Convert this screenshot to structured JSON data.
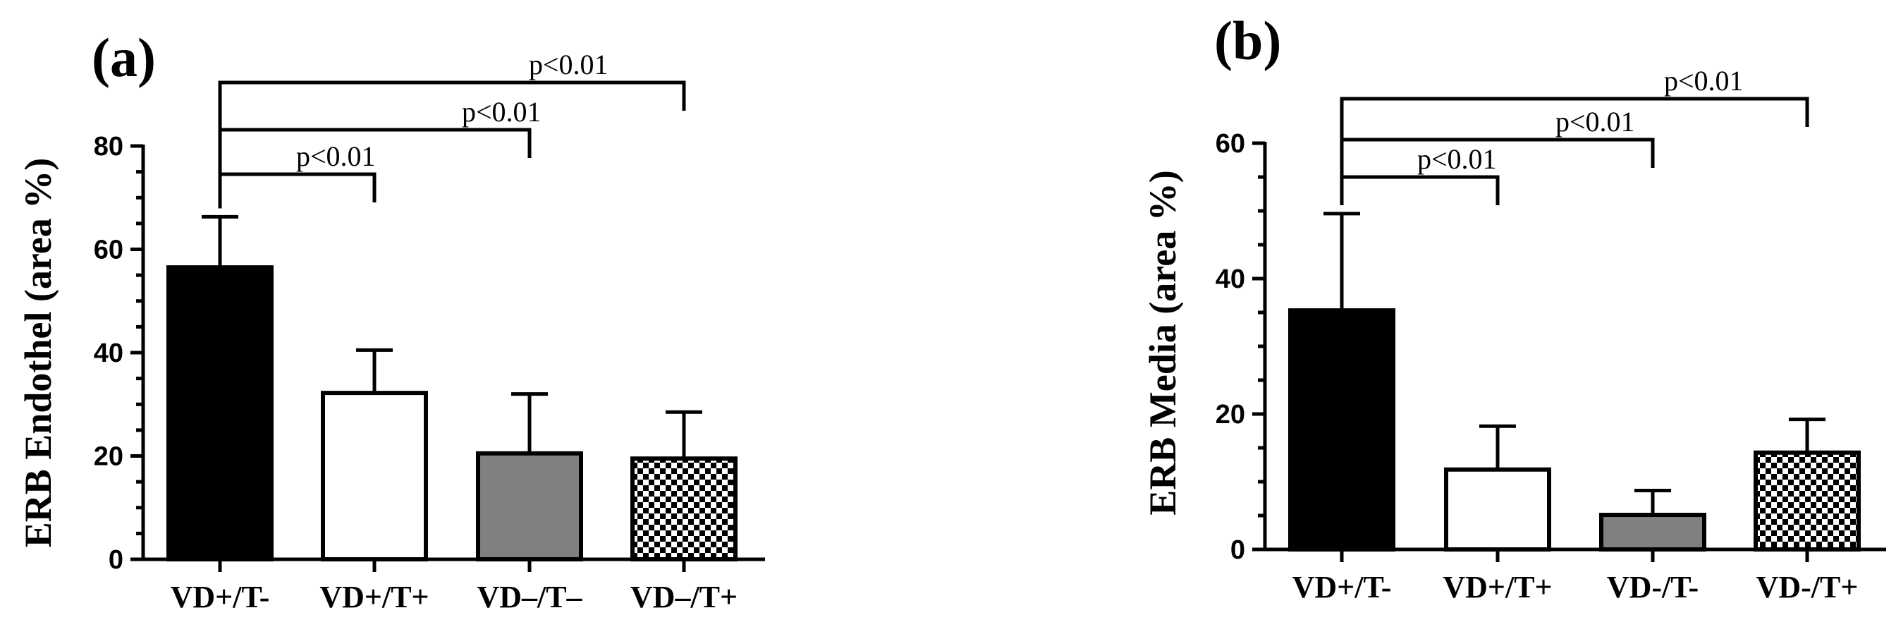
{
  "colors": {
    "black": "#000000",
    "white": "#ffffff",
    "gray": "#808080"
  },
  "chart_data": [
    {
      "type": "bar",
      "panel_label": "(a)",
      "ylabel": "ERB Endothel (area %)",
      "xlabel": "",
      "ylim": [
        0,
        80
      ],
      "yticks": [
        0,
        20,
        40,
        60,
        80
      ],
      "tick_labels": [
        "0",
        "20",
        "40",
        "60",
        "80"
      ],
      "grid": false,
      "categories": [
        "VD+/T-",
        "VD+/T+",
        "VD–/T–",
        "VD–/T+"
      ],
      "values": [
        56.5,
        32.2,
        20.5,
        19.5
      ],
      "errors": [
        9.8,
        8.3,
        11.5,
        9.0
      ],
      "fills": [
        "black",
        "white",
        "gray",
        "checker"
      ],
      "significance": [
        {
          "from": 0,
          "to": 1,
          "label": "p<0.01"
        },
        {
          "from": 0,
          "to": 2,
          "label": "p<0.01"
        },
        {
          "from": 0,
          "to": 3,
          "label": "p<0.01"
        }
      ]
    },
    {
      "type": "bar",
      "panel_label": "(b)",
      "ylabel": "ERB Media (area %)",
      "xlabel": "",
      "ylim": [
        0,
        60
      ],
      "yticks": [
        0,
        20,
        40,
        60
      ],
      "tick_labels": [
        "0",
        "20",
        "40",
        "60"
      ],
      "grid": false,
      "categories": [
        "VD+/T-",
        "VD+/T+",
        "VD-/T-",
        "VD-/T+"
      ],
      "values": [
        35.3,
        11.8,
        5.1,
        14.3
      ],
      "errors": [
        14.3,
        6.4,
        3.6,
        4.9
      ],
      "fills": [
        "black",
        "white",
        "gray",
        "checker"
      ],
      "significance": [
        {
          "from": 0,
          "to": 1,
          "label": "p<0.01"
        },
        {
          "from": 0,
          "to": 2,
          "label": "p<0.01"
        },
        {
          "from": 0,
          "to": 3,
          "label": "p<0.01"
        }
      ]
    }
  ]
}
